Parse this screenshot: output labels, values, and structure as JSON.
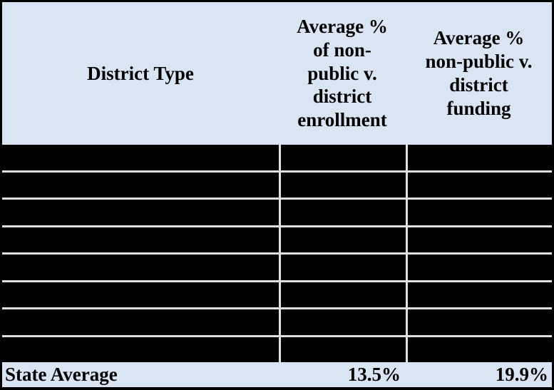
{
  "table": {
    "columns": [
      {
        "label": "District Type"
      },
      {
        "label": "Average %\nof non-\npublic v.\ndistrict\nenrollment"
      },
      {
        "label": "Average %\nnon-public v.\ndistrict\nfunding"
      }
    ],
    "rows": [
      {
        "district_type": "",
        "enrollment_pct": "",
        "funding_pct": "",
        "redacted": true
      },
      {
        "district_type": "",
        "enrollment_pct": "",
        "funding_pct": "",
        "redacted": true
      },
      {
        "district_type": "",
        "enrollment_pct": "",
        "funding_pct": "",
        "redacted": true
      },
      {
        "district_type": "",
        "enrollment_pct": "",
        "funding_pct": "",
        "redacted": true
      },
      {
        "district_type": "",
        "enrollment_pct": "",
        "funding_pct": "",
        "redacted": true
      },
      {
        "district_type": "",
        "enrollment_pct": "",
        "funding_pct": "",
        "redacted": true
      },
      {
        "district_type": "",
        "enrollment_pct": "",
        "funding_pct": "",
        "redacted": true
      },
      {
        "district_type": "",
        "enrollment_pct": "",
        "funding_pct": "",
        "redacted": true
      }
    ],
    "footer": {
      "label": "State Average",
      "enrollment_pct": "13.5%",
      "funding_pct": "19.9%"
    }
  },
  "colors": {
    "header_bg": "#d9e5f3",
    "footer_bg": "#d9e5f3",
    "redacted_fill": "#000000",
    "gridline": "#e0e0e0",
    "border": "#000000",
    "text": "#000000"
  }
}
